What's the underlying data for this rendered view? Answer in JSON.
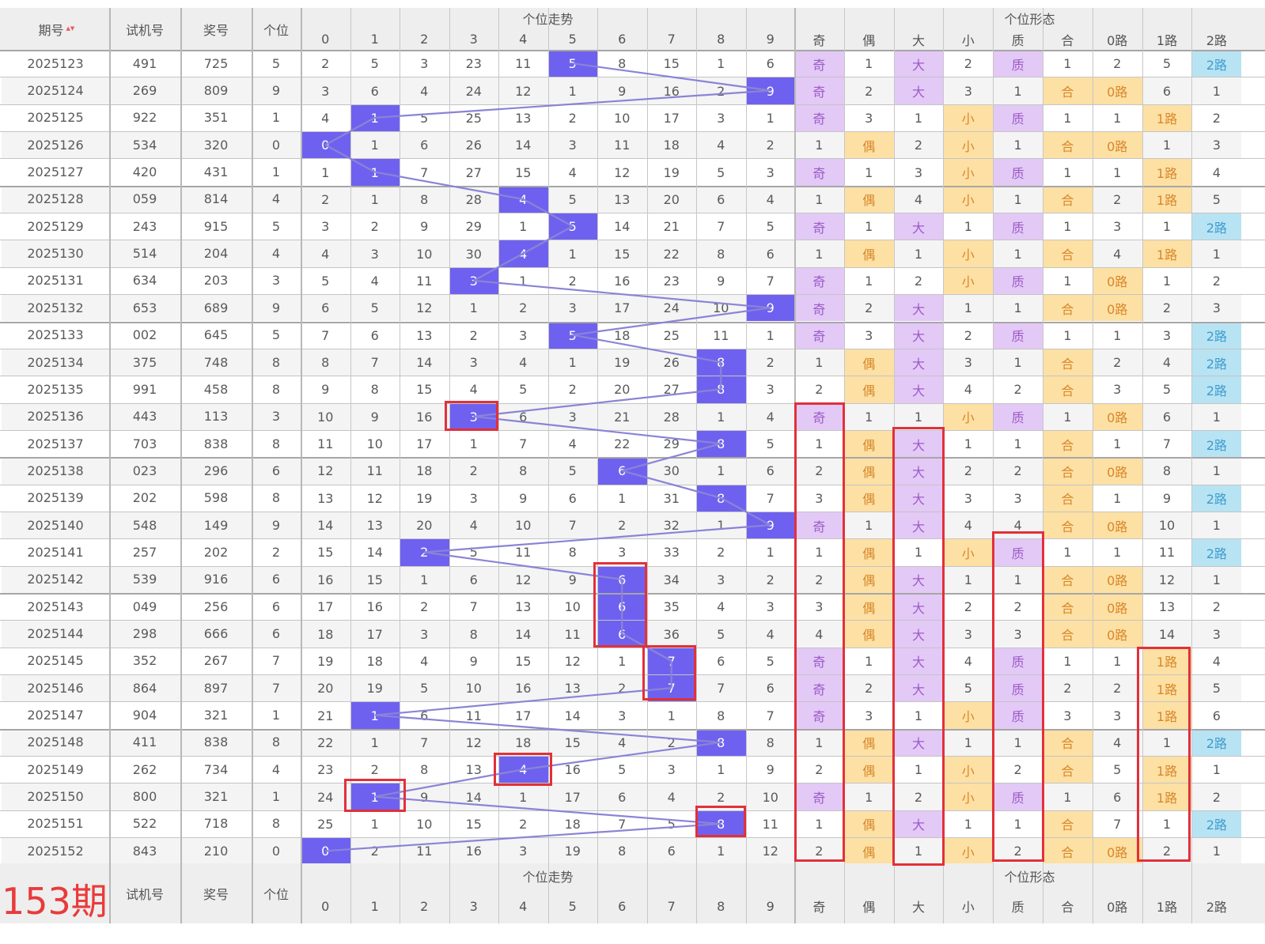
{
  "header": {
    "issue": "期号",
    "trial": "试机号",
    "prize": "奖号",
    "units": "个位",
    "trend_group": "个位走势",
    "form_group": "个位形态",
    "digits": [
      "0",
      "1",
      "2",
      "3",
      "4",
      "5",
      "6",
      "7",
      "8",
      "9"
    ],
    "forms": [
      "奇",
      "偶",
      "大",
      "小",
      "质",
      "合",
      "0路",
      "1路",
      "2路"
    ]
  },
  "footer": {
    "period_label": "153期",
    "trial": "试机号",
    "prize": "奖号",
    "units": "个位",
    "trend_group": "个位走势",
    "form_group": "个位形态"
  },
  "rows": [
    {
      "issue": "2025123",
      "trial": "491",
      "prize": "725",
      "unit": "5",
      "trend": [
        "2",
        "5",
        "3",
        "23",
        "11",
        "5",
        "8",
        "15",
        "1",
        "6"
      ],
      "form": [
        "奇",
        "1",
        "大",
        "2",
        "质",
        "1",
        "2",
        "5",
        "2路"
      ]
    },
    {
      "issue": "2025124",
      "trial": "269",
      "prize": "809",
      "unit": "9",
      "trend": [
        "3",
        "6",
        "4",
        "24",
        "12",
        "1",
        "9",
        "16",
        "2",
        "9"
      ],
      "form": [
        "奇",
        "2",
        "大",
        "3",
        "1",
        "合",
        "0路",
        "6",
        "1"
      ]
    },
    {
      "issue": "2025125",
      "trial": "922",
      "prize": "351",
      "unit": "1",
      "trend": [
        "4",
        "1",
        "5",
        "25",
        "13",
        "2",
        "10",
        "17",
        "3",
        "1"
      ],
      "form": [
        "奇",
        "3",
        "1",
        "小",
        "质",
        "1",
        "1",
        "1路",
        "2"
      ]
    },
    {
      "issue": "2025126",
      "trial": "534",
      "prize": "320",
      "unit": "0",
      "trend": [
        "0",
        "1",
        "6",
        "26",
        "14",
        "3",
        "11",
        "18",
        "4",
        "2"
      ],
      "form": [
        "1",
        "偶",
        "2",
        "小",
        "1",
        "合",
        "0路",
        "1",
        "3"
      ]
    },
    {
      "issue": "2025127",
      "trial": "420",
      "prize": "431",
      "unit": "1",
      "trend": [
        "1",
        "1",
        "7",
        "27",
        "15",
        "4",
        "12",
        "19",
        "5",
        "3"
      ],
      "form": [
        "奇",
        "1",
        "3",
        "小",
        "质",
        "1",
        "1",
        "1路",
        "4"
      ]
    },
    {
      "issue": "2025128",
      "trial": "059",
      "prize": "814",
      "unit": "4",
      "trend": [
        "2",
        "1",
        "8",
        "28",
        "4",
        "5",
        "13",
        "20",
        "6",
        "4"
      ],
      "form": [
        "1",
        "偶",
        "4",
        "小",
        "1",
        "合",
        "2",
        "1路",
        "5"
      ]
    },
    {
      "issue": "2025129",
      "trial": "243",
      "prize": "915",
      "unit": "5",
      "trend": [
        "3",
        "2",
        "9",
        "29",
        "1",
        "5",
        "14",
        "21",
        "7",
        "5"
      ],
      "form": [
        "奇",
        "1",
        "大",
        "1",
        "质",
        "1",
        "3",
        "1",
        "2路"
      ]
    },
    {
      "issue": "2025130",
      "trial": "514",
      "prize": "204",
      "unit": "4",
      "trend": [
        "4",
        "3",
        "10",
        "30",
        "4",
        "1",
        "15",
        "22",
        "8",
        "6"
      ],
      "form": [
        "1",
        "偶",
        "1",
        "小",
        "1",
        "合",
        "4",
        "1路",
        "1"
      ]
    },
    {
      "issue": "2025131",
      "trial": "634",
      "prize": "203",
      "unit": "3",
      "trend": [
        "5",
        "4",
        "11",
        "3",
        "1",
        "2",
        "16",
        "23",
        "9",
        "7"
      ],
      "form": [
        "奇",
        "1",
        "2",
        "小",
        "质",
        "1",
        "0路",
        "1",
        "2"
      ]
    },
    {
      "issue": "2025132",
      "trial": "653",
      "prize": "689",
      "unit": "9",
      "trend": [
        "6",
        "5",
        "12",
        "1",
        "2",
        "3",
        "17",
        "24",
        "10",
        "9"
      ],
      "form": [
        "奇",
        "2",
        "大",
        "1",
        "1",
        "合",
        "0路",
        "2",
        "3"
      ]
    },
    {
      "issue": "2025133",
      "trial": "002",
      "prize": "645",
      "unit": "5",
      "trend": [
        "7",
        "6",
        "13",
        "2",
        "3",
        "5",
        "18",
        "25",
        "11",
        "1"
      ],
      "form": [
        "奇",
        "3",
        "大",
        "2",
        "质",
        "1",
        "1",
        "3",
        "2路"
      ]
    },
    {
      "issue": "2025134",
      "trial": "375",
      "prize": "748",
      "unit": "8",
      "trend": [
        "8",
        "7",
        "14",
        "3",
        "4",
        "1",
        "19",
        "26",
        "8",
        "2"
      ],
      "form": [
        "1",
        "偶",
        "大",
        "3",
        "1",
        "合",
        "2",
        "4",
        "2路"
      ]
    },
    {
      "issue": "2025135",
      "trial": "991",
      "prize": "458",
      "unit": "8",
      "trend": [
        "9",
        "8",
        "15",
        "4",
        "5",
        "2",
        "20",
        "27",
        "8",
        "3"
      ],
      "form": [
        "2",
        "偶",
        "大",
        "4",
        "2",
        "合",
        "3",
        "5",
        "2路"
      ]
    },
    {
      "issue": "2025136",
      "trial": "443",
      "prize": "113",
      "unit": "3",
      "trend": [
        "10",
        "9",
        "16",
        "3",
        "6",
        "3",
        "21",
        "28",
        "1",
        "4"
      ],
      "form": [
        "奇",
        "1",
        "1",
        "小",
        "质",
        "1",
        "0路",
        "6",
        "1"
      ]
    },
    {
      "issue": "2025137",
      "trial": "703",
      "prize": "838",
      "unit": "8",
      "trend": [
        "11",
        "10",
        "17",
        "1",
        "7",
        "4",
        "22",
        "29",
        "8",
        "5"
      ],
      "form": [
        "1",
        "偶",
        "大",
        "1",
        "1",
        "合",
        "1",
        "7",
        "2路"
      ]
    },
    {
      "issue": "2025138",
      "trial": "023",
      "prize": "296",
      "unit": "6",
      "trend": [
        "12",
        "11",
        "18",
        "2",
        "8",
        "5",
        "6",
        "30",
        "1",
        "6"
      ],
      "form": [
        "2",
        "偶",
        "大",
        "2",
        "2",
        "合",
        "0路",
        "8",
        "1"
      ]
    },
    {
      "issue": "2025139",
      "trial": "202",
      "prize": "598",
      "unit": "8",
      "trend": [
        "13",
        "12",
        "19",
        "3",
        "9",
        "6",
        "1",
        "31",
        "8",
        "7"
      ],
      "form": [
        "3",
        "偶",
        "大",
        "3",
        "3",
        "合",
        "1",
        "9",
        "2路"
      ]
    },
    {
      "issue": "2025140",
      "trial": "548",
      "prize": "149",
      "unit": "9",
      "trend": [
        "14",
        "13",
        "20",
        "4",
        "10",
        "7",
        "2",
        "32",
        "1",
        "9"
      ],
      "form": [
        "奇",
        "1",
        "大",
        "4",
        "4",
        "合",
        "0路",
        "10",
        "1"
      ]
    },
    {
      "issue": "2025141",
      "trial": "257",
      "prize": "202",
      "unit": "2",
      "trend": [
        "15",
        "14",
        "2",
        "5",
        "11",
        "8",
        "3",
        "33",
        "2",
        "1"
      ],
      "form": [
        "1",
        "偶",
        "1",
        "小",
        "质",
        "1",
        "1",
        "11",
        "2路"
      ]
    },
    {
      "issue": "2025142",
      "trial": "539",
      "prize": "916",
      "unit": "6",
      "trend": [
        "16",
        "15",
        "1",
        "6",
        "12",
        "9",
        "6",
        "34",
        "3",
        "2"
      ],
      "form": [
        "2",
        "偶",
        "大",
        "1",
        "1",
        "合",
        "0路",
        "12",
        "1"
      ]
    },
    {
      "issue": "2025143",
      "trial": "049",
      "prize": "256",
      "unit": "6",
      "trend": [
        "17",
        "16",
        "2",
        "7",
        "13",
        "10",
        "6",
        "35",
        "4",
        "3"
      ],
      "form": [
        "3",
        "偶",
        "大",
        "2",
        "2",
        "合",
        "0路",
        "13",
        "2"
      ]
    },
    {
      "issue": "2025144",
      "trial": "298",
      "prize": "666",
      "unit": "6",
      "trend": [
        "18",
        "17",
        "3",
        "8",
        "14",
        "11",
        "6",
        "36",
        "5",
        "4"
      ],
      "form": [
        "4",
        "偶",
        "大",
        "3",
        "3",
        "合",
        "0路",
        "14",
        "3"
      ]
    },
    {
      "issue": "2025145",
      "trial": "352",
      "prize": "267",
      "unit": "7",
      "trend": [
        "19",
        "18",
        "4",
        "9",
        "15",
        "12",
        "1",
        "7",
        "6",
        "5"
      ],
      "form": [
        "奇",
        "1",
        "大",
        "4",
        "质",
        "1",
        "1",
        "1路",
        "4"
      ]
    },
    {
      "issue": "2025146",
      "trial": "864",
      "prize": "897",
      "unit": "7",
      "trend": [
        "20",
        "19",
        "5",
        "10",
        "16",
        "13",
        "2",
        "7",
        "7",
        "6"
      ],
      "form": [
        "奇",
        "2",
        "大",
        "5",
        "质",
        "2",
        "2",
        "1路",
        "5"
      ]
    },
    {
      "issue": "2025147",
      "trial": "904",
      "prize": "321",
      "unit": "1",
      "trend": [
        "21",
        "1",
        "6",
        "11",
        "17",
        "14",
        "3",
        "1",
        "8",
        "7"
      ],
      "form": [
        "奇",
        "3",
        "1",
        "小",
        "质",
        "3",
        "3",
        "1路",
        "6"
      ]
    },
    {
      "issue": "2025148",
      "trial": "411",
      "prize": "838",
      "unit": "8",
      "trend": [
        "22",
        "1",
        "7",
        "12",
        "18",
        "15",
        "4",
        "2",
        "8",
        "8"
      ],
      "form": [
        "1",
        "偶",
        "大",
        "1",
        "1",
        "合",
        "4",
        "1",
        "2路"
      ]
    },
    {
      "issue": "2025149",
      "trial": "262",
      "prize": "734",
      "unit": "4",
      "trend": [
        "23",
        "2",
        "8",
        "13",
        "4",
        "16",
        "5",
        "3",
        "1",
        "9"
      ],
      "form": [
        "2",
        "偶",
        "1",
        "小",
        "2",
        "合",
        "5",
        "1路",
        "1"
      ]
    },
    {
      "issue": "2025150",
      "trial": "800",
      "prize": "321",
      "unit": "1",
      "trend": [
        "24",
        "1",
        "9",
        "14",
        "1",
        "17",
        "6",
        "4",
        "2",
        "10"
      ],
      "form": [
        "奇",
        "1",
        "2",
        "小",
        "质",
        "1",
        "6",
        "1路",
        "2"
      ]
    },
    {
      "issue": "2025151",
      "trial": "522",
      "prize": "718",
      "unit": "8",
      "trend": [
        "25",
        "1",
        "10",
        "15",
        "2",
        "18",
        "7",
        "5",
        "8",
        "11"
      ],
      "form": [
        "1",
        "偶",
        "大",
        "1",
        "1",
        "合",
        "7",
        "1",
        "2路"
      ]
    },
    {
      "issue": "2025152",
      "trial": "843",
      "prize": "210",
      "unit": "0",
      "trend": [
        "0",
        "2",
        "11",
        "16",
        "3",
        "19",
        "8",
        "6",
        "1",
        "12"
      ],
      "form": [
        "2",
        "偶",
        "1",
        "小",
        "2",
        "合",
        "0路",
        "2",
        "1"
      ]
    }
  ],
  "colors": {
    "hit": "#6f61ef",
    "line": "#8a84d6",
    "odd_prime_big": "#e3c9f6",
    "even_comp_small": "#fde0a4",
    "route2": "#b8e3f3",
    "highlight_box": "#e2303a"
  }
}
